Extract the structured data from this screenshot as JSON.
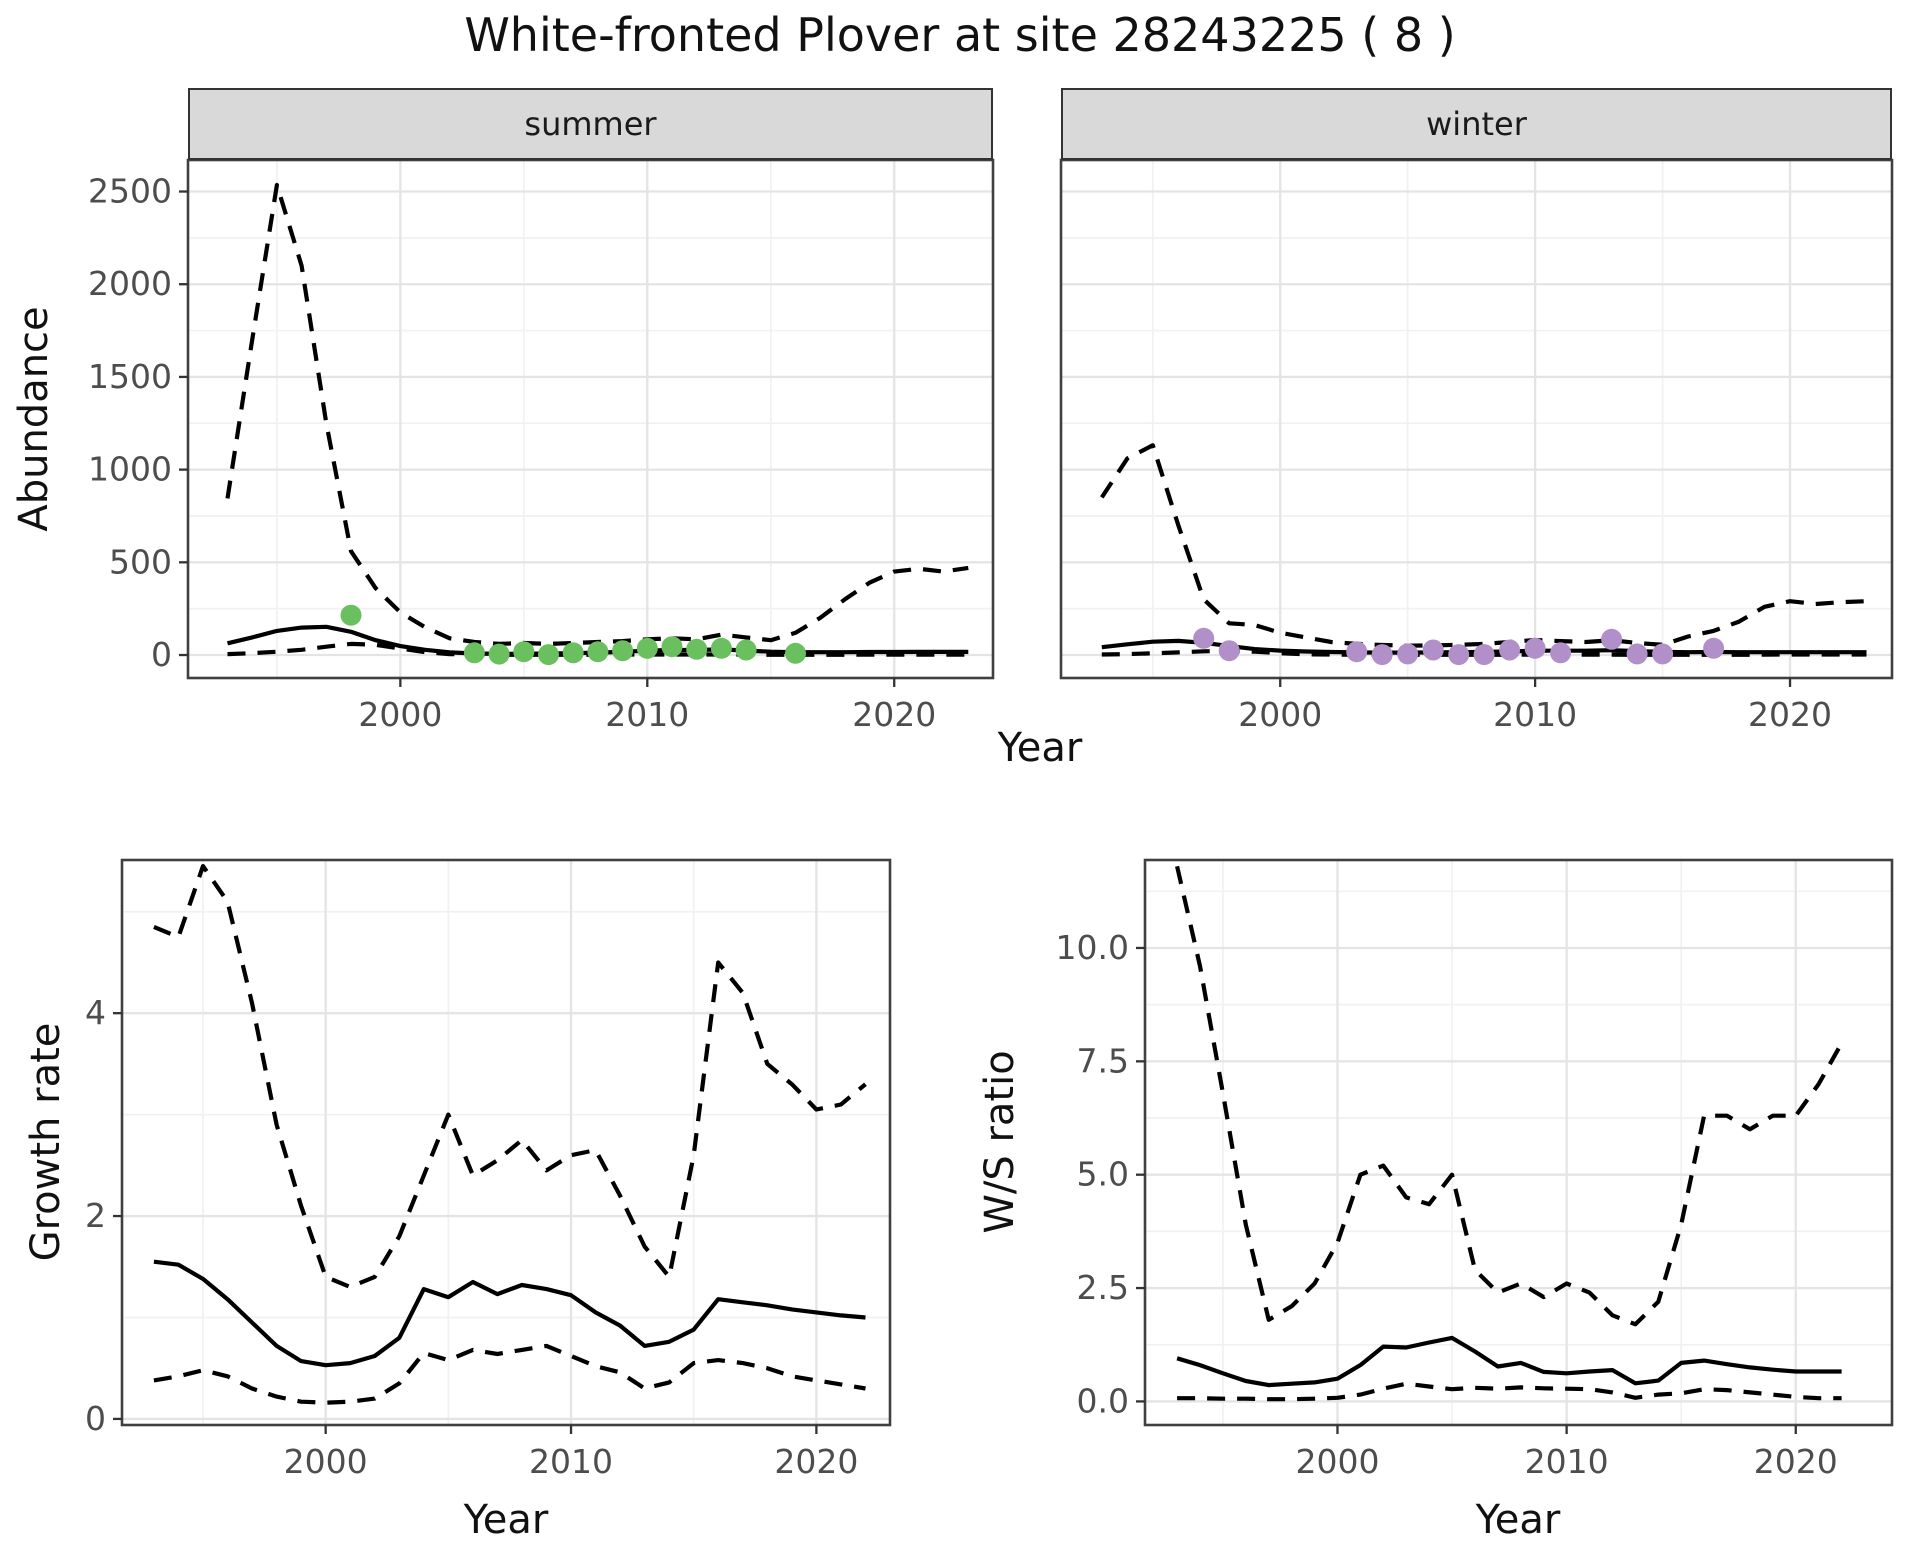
{
  "title": "White-fronted Plover at site 28243225 ( 8 )",
  "facets": {
    "summer": "summer",
    "winter": "winter"
  },
  "axis_titles": {
    "x": "Year",
    "abundance": "Abundance",
    "growth": "Growth rate",
    "ws": "W/S ratio"
  },
  "colors": {
    "background": "#ffffff",
    "summer_point": "#6abf5f",
    "winter_point": "#b18fc9",
    "line": "#000000",
    "grid_major": "#e4e4e4",
    "grid_minor": "#f1f1f1",
    "strip_bg": "#d9d9d9",
    "strip_border": "#333333",
    "panel_border": "#404040",
    "axis_text": "#4d4d4d",
    "tick_mark": "#333333"
  },
  "chart_data": [
    {
      "name": "abundance-summer",
      "type": "line",
      "facet": "summer",
      "xlabel": "Year",
      "ylabel": "Abundance",
      "x": [
        1993,
        1994,
        1995,
        1996,
        1997,
        1998,
        1999,
        2000,
        2001,
        2002,
        2003,
        2004,
        2005,
        2006,
        2007,
        2008,
        2009,
        2010,
        2011,
        2012,
        2013,
        2014,
        2015,
        2016,
        2017,
        2018,
        2019,
        2020,
        2021,
        2022,
        2023
      ],
      "series": [
        {
          "name": "median",
          "style": "solid",
          "values": [
            63,
            95,
            130,
            148,
            152,
            125,
            80,
            48,
            28,
            14,
            8,
            6,
            7,
            8,
            10,
            13,
            17,
            24,
            27,
            27,
            30,
            24,
            18,
            15,
            15,
            15,
            16,
            16,
            17,
            17,
            17
          ]
        },
        {
          "name": "upper-ci",
          "style": "dashed",
          "values": [
            845,
            1700,
            2535,
            2100,
            1250,
            560,
            360,
            230,
            150,
            90,
            70,
            60,
            65,
            60,
            65,
            70,
            75,
            85,
            90,
            85,
            110,
            95,
            80,
            120,
            200,
            300,
            390,
            450,
            465,
            450,
            470
          ]
        },
        {
          "name": "lower-ci",
          "style": "dashed",
          "values": [
            5,
            10,
            18,
            28,
            45,
            60,
            55,
            35,
            15,
            5,
            2,
            1,
            1,
            1,
            1,
            1,
            2,
            3,
            3,
            3,
            3,
            2,
            1,
            1,
            1,
            1,
            2,
            2,
            2,
            2,
            2
          ]
        }
      ],
      "points": {
        "name": "observed-counts-summer",
        "color_key": "summer_point",
        "x": [
          1998,
          2003,
          2004,
          2005,
          2006,
          2007,
          2008,
          2009,
          2010,
          2011,
          2012,
          2013,
          2014,
          2016
        ],
        "y": [
          215,
          12,
          5,
          18,
          2,
          12,
          18,
          23,
          36,
          45,
          31,
          36,
          27,
          9
        ]
      },
      "xlim": [
        1991.4,
        2024.0
      ],
      "ylim": [
        -124,
        2670
      ],
      "xticks": {
        "values": [
          2000,
          2010,
          2020
        ],
        "labels": [
          "2000",
          "2010",
          "2020"
        ]
      },
      "yticks": {
        "show": true,
        "values": [
          0,
          500,
          1000,
          1500,
          2000,
          2500
        ],
        "labels": [
          "0",
          "500",
          "1000",
          "1500",
          "2000",
          "2500"
        ]
      },
      "xminor": [
        1995,
        2005,
        2015
      ],
      "yminor": [
        250,
        750,
        1250,
        1750,
        2250
      ]
    },
    {
      "name": "abundance-winter",
      "type": "line",
      "facet": "winter",
      "xlabel": "Year",
      "ylabel": "Abundance",
      "x": [
        1993,
        1994,
        1995,
        1996,
        1997,
        1998,
        1999,
        2000,
        2001,
        2002,
        2003,
        2004,
        2005,
        2006,
        2007,
        2008,
        2009,
        2010,
        2011,
        2012,
        2013,
        2014,
        2015,
        2016,
        2017,
        2018,
        2019,
        2020,
        2021,
        2022,
        2023
      ],
      "series": [
        {
          "name": "median",
          "style": "solid",
          "values": [
            42,
            58,
            72,
            76,
            66,
            48,
            32,
            24,
            19,
            16,
            14,
            13,
            13,
            14,
            15,
            17,
            19,
            23,
            23,
            23,
            26,
            21,
            17,
            15,
            16,
            15,
            15,
            15,
            15,
            15,
            15
          ]
        },
        {
          "name": "upper-ci",
          "style": "dashed",
          "values": [
            850,
            1060,
            1131,
            700,
            300,
            171,
            162,
            120,
            95,
            70,
            60,
            54,
            50,
            52,
            55,
            60,
            70,
            81,
            75,
            70,
            80,
            65,
            55,
            100,
            130,
            180,
            260,
            290,
            275,
            285,
            290
          ]
        },
        {
          "name": "lower-ci",
          "style": "dashed",
          "values": [
            3,
            5,
            9,
            14,
            20,
            22,
            18,
            10,
            4,
            2,
            1,
            1,
            1,
            1,
            1,
            1,
            1,
            2,
            2,
            2,
            2,
            1,
            1,
            1,
            1,
            1,
            2,
            3,
            3,
            3,
            3
          ]
        }
      ],
      "points": {
        "name": "observed-counts-winter",
        "color_key": "winter_point",
        "x": [
          1997,
          1998,
          2003,
          2004,
          2005,
          2006,
          2007,
          2008,
          2009,
          2010,
          2011,
          2013,
          2014,
          2015,
          2017
        ],
        "y": [
          90,
          23,
          18,
          2,
          6,
          27,
          2,
          2,
          27,
          36,
          12,
          85,
          6,
          6,
          36
        ]
      },
      "xlim": [
        1991.4,
        2024.0
      ],
      "ylim": [
        -124,
        2670
      ],
      "xticks": {
        "values": [
          2000,
          2010,
          2020
        ],
        "labels": [
          "2000",
          "2010",
          "2020"
        ]
      },
      "yticks": {
        "show": false,
        "values": [
          0,
          500,
          1000,
          1500,
          2000,
          2500
        ],
        "labels": [
          "0",
          "500",
          "1000",
          "1500",
          "2000",
          "2500"
        ]
      },
      "xminor": [
        1995,
        2005,
        2015
      ],
      "yminor": [
        250,
        750,
        1250,
        1750,
        2250
      ]
    },
    {
      "name": "growth-rate",
      "type": "line",
      "xlabel": "Year",
      "ylabel": "Growth rate",
      "x": [
        1993,
        1994,
        1995,
        1996,
        1997,
        1998,
        1999,
        2000,
        2001,
        2002,
        2003,
        2004,
        2005,
        2006,
        2007,
        2008,
        2009,
        2010,
        2011,
        2012,
        2013,
        2014,
        2015,
        2016,
        2017,
        2018,
        2019,
        2020,
        2021,
        2022
      ],
      "series": [
        {
          "name": "median",
          "style": "solid",
          "values": [
            1.55,
            1.52,
            1.38,
            1.18,
            0.95,
            0.72,
            0.57,
            0.53,
            0.55,
            0.62,
            0.8,
            1.28,
            1.2,
            1.35,
            1.23,
            1.32,
            1.28,
            1.22,
            1.05,
            0.92,
            0.72,
            0.76,
            0.88,
            1.18,
            1.15,
            1.12,
            1.08,
            1.05,
            1.02,
            1.0
          ]
        },
        {
          "name": "upper-ci",
          "style": "dashed",
          "values": [
            4.85,
            4.75,
            5.45,
            5.1,
            4.1,
            2.9,
            2.1,
            1.4,
            1.3,
            1.4,
            1.8,
            2.4,
            3.0,
            2.4,
            2.55,
            2.75,
            2.45,
            2.6,
            2.65,
            2.2,
            1.7,
            1.4,
            2.6,
            4.5,
            4.2,
            3.5,
            3.3,
            3.05,
            3.1,
            3.3
          ]
        },
        {
          "name": "lower-ci",
          "style": "dashed",
          "values": [
            0.38,
            0.42,
            0.48,
            0.42,
            0.3,
            0.22,
            0.17,
            0.16,
            0.17,
            0.2,
            0.35,
            0.65,
            0.58,
            0.68,
            0.64,
            0.68,
            0.72,
            0.62,
            0.52,
            0.46,
            0.3,
            0.36,
            0.55,
            0.58,
            0.55,
            0.5,
            0.42,
            0.38,
            0.34,
            0.3
          ]
        }
      ],
      "points": null,
      "xlim": [
        1991.7,
        2023.0
      ],
      "ylim": [
        -0.06,
        5.51
      ],
      "xticks": {
        "values": [
          2000,
          2010,
          2020
        ],
        "labels": [
          "2000",
          "2010",
          "2020"
        ]
      },
      "yticks": {
        "show": true,
        "values": [
          0,
          2,
          4
        ],
        "labels": [
          "0",
          "2",
          "4"
        ]
      },
      "xminor": [
        1995,
        2005,
        2015
      ],
      "yminor": [
        1,
        3,
        5
      ]
    },
    {
      "name": "ws-ratio",
      "type": "line",
      "xlabel": "Year",
      "ylabel": "W/S ratio",
      "x": [
        1993,
        1994,
        1995,
        1996,
        1997,
        1998,
        1999,
        2000,
        2001,
        2002,
        2003,
        2004,
        2005,
        2006,
        2007,
        2008,
        2009,
        2010,
        2011,
        2012,
        2013,
        2014,
        2015,
        2016,
        2017,
        2018,
        2019,
        2020,
        2021,
        2022
      ],
      "series": [
        {
          "name": "median",
          "style": "solid",
          "values": [
            0.95,
            0.8,
            0.62,
            0.45,
            0.36,
            0.39,
            0.42,
            0.5,
            0.8,
            1.21,
            1.19,
            1.3,
            1.4,
            1.1,
            0.77,
            0.85,
            0.65,
            0.62,
            0.66,
            0.69,
            0.4,
            0.46,
            0.85,
            0.9,
            0.82,
            0.75,
            0.7,
            0.66,
            0.66,
            0.66
          ]
        },
        {
          "name": "upper-ci",
          "style": "dashed",
          "values": [
            11.8,
            9.6,
            6.8,
            3.9,
            1.8,
            2.1,
            2.6,
            3.5,
            5.0,
            5.2,
            4.5,
            4.35,
            5.0,
            2.9,
            2.4,
            2.6,
            2.3,
            2.6,
            2.4,
            1.9,
            1.7,
            2.2,
            3.9,
            6.3,
            6.3,
            6.0,
            6.3,
            6.3,
            7.0,
            7.9
          ]
        },
        {
          "name": "lower-ci",
          "style": "dashed",
          "values": [
            0.07,
            0.07,
            0.06,
            0.06,
            0.05,
            0.05,
            0.06,
            0.08,
            0.15,
            0.28,
            0.39,
            0.33,
            0.27,
            0.3,
            0.28,
            0.31,
            0.29,
            0.28,
            0.27,
            0.2,
            0.08,
            0.15,
            0.18,
            0.27,
            0.25,
            0.2,
            0.15,
            0.1,
            0.07,
            0.07
          ]
        }
      ],
      "points": null,
      "xlim": [
        1991.6,
        2024.2
      ],
      "ylim": [
        -0.52,
        11.94
      ],
      "xticks": {
        "values": [
          2000,
          2010,
          2020
        ],
        "labels": [
          "2000",
          "2010",
          "2020"
        ]
      },
      "yticks": {
        "show": true,
        "values": [
          0,
          2.5,
          5,
          7.5,
          10
        ],
        "labels": [
          "0.0",
          "2.5",
          "5.0",
          "7.5",
          "10.0"
        ]
      },
      "xminor": [
        1995,
        2005,
        2015
      ],
      "yminor": [
        1.25,
        3.75,
        6.25,
        8.75,
        11.25
      ]
    }
  ]
}
